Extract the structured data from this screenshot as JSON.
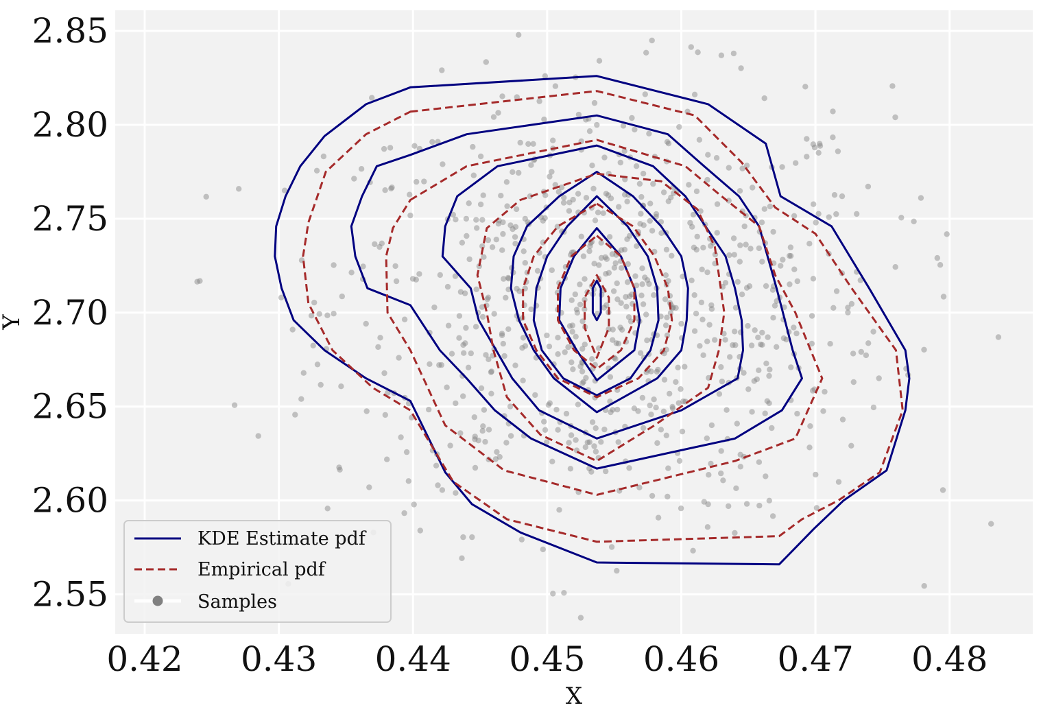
{
  "chart_data": {
    "type": "contour",
    "title": "",
    "xlabel": "X",
    "ylabel": "Y",
    "xlim": [
      0.4178,
      0.4862
    ],
    "ylim": [
      2.529,
      2.861
    ],
    "xticks": [
      0.42,
      0.43,
      0.44,
      0.45,
      0.46,
      0.47,
      0.48
    ],
    "xtick_labels": [
      "0.42",
      "0.43",
      "0.44",
      "0.45",
      "0.46",
      "0.47",
      "0.48"
    ],
    "yticks": [
      2.55,
      2.6,
      2.65,
      2.7,
      2.75,
      2.8,
      2.85
    ],
    "ytick_labels": [
      "2.55",
      "2.60",
      "2.65",
      "2.70",
      "2.75",
      "2.80",
      "2.85"
    ],
    "grid": true,
    "legend_position": "bottom-left",
    "colors": {
      "kde": "#000080",
      "empirical": "#a52a2a",
      "samples": "#808080",
      "plot_background": "#f2f2f2",
      "grid": "#ffffff"
    },
    "legend": [
      {
        "label": "KDE Estimate pdf",
        "style": "solid",
        "color": "#000080"
      },
      {
        "label": "Empirical pdf",
        "style": "dashed",
        "color": "#a52a2a"
      },
      {
        "label": "Samples",
        "style": "marker",
        "color": "#808080"
      }
    ],
    "series": [
      {
        "name": "KDE Estimate pdf",
        "style": "solid",
        "contours": [
          [
            [
              0.4398,
              2.82
            ],
            [
              0.4537,
              2.826
            ],
            [
              0.462,
              2.811
            ],
            [
              0.4663,
              2.79
            ],
            [
              0.4674,
              2.762
            ],
            [
              0.4712,
              2.746
            ],
            [
              0.474,
              2.713
            ],
            [
              0.4767,
              2.68
            ],
            [
              0.477,
              2.665
            ],
            [
              0.4767,
              2.648
            ],
            [
              0.4753,
              2.616
            ],
            [
              0.4721,
              2.6
            ],
            [
              0.4699,
              2.585
            ],
            [
              0.4673,
              2.566
            ],
            [
              0.4537,
              2.567
            ],
            [
              0.448,
              2.583
            ],
            [
              0.4444,
              2.598
            ],
            [
              0.4424,
              2.615
            ],
            [
              0.4398,
              2.653
            ],
            [
              0.4365,
              2.665
            ],
            [
              0.4334,
              2.68
            ],
            [
              0.4311,
              2.696
            ],
            [
              0.4302,
              2.713
            ],
            [
              0.4297,
              2.73
            ],
            [
              0.4298,
              2.746
            ],
            [
              0.4305,
              2.762
            ],
            [
              0.4316,
              2.778
            ],
            [
              0.4334,
              2.794
            ],
            [
              0.4365,
              2.811
            ]
          ],
          [
            [
              0.4398,
              2.784
            ],
            [
              0.444,
              2.795
            ],
            [
              0.4537,
              2.805
            ],
            [
              0.459,
              2.795
            ],
            [
              0.4617,
              2.778
            ],
            [
              0.4643,
              2.762
            ],
            [
              0.4658,
              2.746
            ],
            [
              0.4671,
              2.713
            ],
            [
              0.4683,
              2.68
            ],
            [
              0.469,
              2.665
            ],
            [
              0.4675,
              2.648
            ],
            [
              0.464,
              2.633
            ],
            [
              0.4537,
              2.617
            ],
            [
              0.4488,
              2.633
            ],
            [
              0.4461,
              2.648
            ],
            [
              0.444,
              2.665
            ],
            [
              0.442,
              2.68
            ],
            [
              0.4398,
              2.704
            ],
            [
              0.4366,
              2.713
            ],
            [
              0.4357,
              2.73
            ],
            [
              0.4354,
              2.746
            ],
            [
              0.4362,
              2.762
            ],
            [
              0.4373,
              2.778
            ]
          ],
          [
            [
              0.4537,
              2.789
            ],
            [
              0.4579,
              2.778
            ],
            [
              0.4603,
              2.762
            ],
            [
              0.4618,
              2.746
            ],
            [
              0.4633,
              2.73
            ],
            [
              0.464,
              2.713
            ],
            [
              0.4645,
              2.696
            ],
            [
              0.4646,
              2.68
            ],
            [
              0.4642,
              2.665
            ],
            [
              0.46,
              2.648
            ],
            [
              0.4537,
              2.633
            ],
            [
              0.4494,
              2.648
            ],
            [
              0.4474,
              2.665
            ],
            [
              0.4462,
              2.68
            ],
            [
              0.4449,
              2.696
            ],
            [
              0.4443,
              2.713
            ],
            [
              0.4422,
              2.73
            ],
            [
              0.4424,
              2.746
            ],
            [
              0.4433,
              2.762
            ],
            [
              0.4463,
              2.778
            ]
          ],
          [
            [
              0.4537,
              2.775
            ],
            [
              0.4564,
              2.762
            ],
            [
              0.4585,
              2.746
            ],
            [
              0.46,
              2.73
            ],
            [
              0.4605,
              2.713
            ],
            [
              0.4604,
              2.696
            ],
            [
              0.46,
              2.68
            ],
            [
              0.4582,
              2.665
            ],
            [
              0.4537,
              2.647
            ],
            [
              0.4505,
              2.665
            ],
            [
              0.449,
              2.68
            ],
            [
              0.4479,
              2.696
            ],
            [
              0.4473,
              2.713
            ],
            [
              0.4475,
              2.73
            ],
            [
              0.4485,
              2.746
            ],
            [
              0.4509,
              2.762
            ]
          ],
          [
            [
              0.4537,
              2.762
            ],
            [
              0.456,
              2.746
            ],
            [
              0.4575,
              2.73
            ],
            [
              0.4582,
              2.713
            ],
            [
              0.4583,
              2.696
            ],
            [
              0.4577,
              2.68
            ],
            [
              0.4562,
              2.665
            ],
            [
              0.4537,
              2.656
            ],
            [
              0.4512,
              2.665
            ],
            [
              0.4496,
              2.68
            ],
            [
              0.449,
              2.696
            ],
            [
              0.4492,
              2.713
            ],
            [
              0.45,
              2.73
            ],
            [
              0.4515,
              2.746
            ]
          ],
          [
            [
              0.4537,
              2.745
            ],
            [
              0.4555,
              2.73
            ],
            [
              0.4565,
              2.713
            ],
            [
              0.4569,
              2.696
            ],
            [
              0.4565,
              2.68
            ],
            [
              0.4537,
              2.664
            ],
            [
              0.4522,
              2.68
            ],
            [
              0.4509,
              2.696
            ],
            [
              0.451,
              2.713
            ],
            [
              0.452,
              2.73
            ]
          ],
          [
            [
              0.4537,
              2.717
            ],
            [
              0.454,
              2.713
            ],
            [
              0.454,
              2.7
            ],
            [
              0.4537,
              2.696
            ],
            [
              0.4534,
              2.7
            ],
            [
              0.4534,
              2.713
            ]
          ]
        ]
      },
      {
        "name": "Empirical pdf",
        "style": "dashed",
        "contours": [
          [
            [
              0.4398,
              2.807
            ],
            [
              0.4537,
              2.818
            ],
            [
              0.461,
              2.805
            ],
            [
              0.4645,
              2.78
            ],
            [
              0.467,
              2.756
            ],
            [
              0.47,
              2.742
            ],
            [
              0.4727,
              2.713
            ],
            [
              0.476,
              2.68
            ],
            [
              0.4765,
              2.648
            ],
            [
              0.4748,
              2.615
            ],
            [
              0.4717,
              2.6
            ],
            [
              0.469,
              2.59
            ],
            [
              0.4673,
              2.581
            ],
            [
              0.4537,
              2.578
            ],
            [
              0.447,
              2.59
            ],
            [
              0.443,
              2.61
            ],
            [
              0.4398,
              2.648
            ],
            [
              0.437,
              2.66
            ],
            [
              0.434,
              2.68
            ],
            [
              0.4322,
              2.705
            ],
            [
              0.4318,
              2.73
            ],
            [
              0.4322,
              2.748
            ],
            [
              0.4335,
              2.775
            ],
            [
              0.4365,
              2.795
            ]
          ],
          [
            [
              0.4398,
              2.76
            ],
            [
              0.444,
              2.778
            ],
            [
              0.4537,
              2.792
            ],
            [
              0.4603,
              2.778
            ],
            [
              0.463,
              2.762
            ],
            [
              0.4658,
              2.746
            ],
            [
              0.467,
              2.72
            ],
            [
              0.4685,
              2.7
            ],
            [
              0.4705,
              2.665
            ],
            [
              0.4685,
              2.633
            ],
            [
              0.464,
              2.621
            ],
            [
              0.4537,
              2.603
            ],
            [
              0.4468,
              2.616
            ],
            [
              0.4424,
              2.64
            ],
            [
              0.4398,
              2.68
            ],
            [
              0.4381,
              2.7
            ],
            [
              0.438,
              2.73
            ],
            [
              0.4385,
              2.745
            ]
          ],
          [
            [
              0.4537,
              2.774
            ],
            [
              0.4585,
              2.77
            ],
            [
              0.4612,
              2.755
            ],
            [
              0.4625,
              2.735
            ],
            [
              0.4628,
              2.72
            ],
            [
              0.4632,
              2.7
            ],
            [
              0.4628,
              2.68
            ],
            [
              0.462,
              2.66
            ],
            [
              0.458,
              2.64
            ],
            [
              0.4537,
              2.621
            ],
            [
              0.4495,
              2.635
            ],
            [
              0.447,
              2.655
            ],
            [
              0.446,
              2.68
            ],
            [
              0.4455,
              2.7
            ],
            [
              0.4448,
              2.72
            ],
            [
              0.4455,
              2.745
            ],
            [
              0.448,
              2.76
            ]
          ],
          [
            [
              0.4537,
              2.758
            ],
            [
              0.4564,
              2.746
            ],
            [
              0.458,
              2.73
            ],
            [
              0.459,
              2.713
            ],
            [
              0.4593,
              2.696
            ],
            [
              0.4587,
              2.68
            ],
            [
              0.4568,
              2.665
            ],
            [
              0.4537,
              2.655
            ],
            [
              0.4508,
              2.665
            ],
            [
              0.4492,
              2.68
            ],
            [
              0.4482,
              2.696
            ],
            [
              0.4482,
              2.713
            ],
            [
              0.449,
              2.73
            ],
            [
              0.4508,
              2.746
            ]
          ],
          [
            [
              0.4537,
              2.741
            ],
            [
              0.4555,
              2.73
            ],
            [
              0.4565,
              2.713
            ],
            [
              0.4565,
              2.696
            ],
            [
              0.4555,
              2.68
            ],
            [
              0.4537,
              2.67
            ],
            [
              0.452,
              2.68
            ],
            [
              0.4508,
              2.696
            ],
            [
              0.4508,
              2.713
            ],
            [
              0.4518,
              2.73
            ]
          ],
          [
            [
              0.4537,
              2.72
            ],
            [
              0.4546,
              2.708
            ],
            [
              0.4546,
              2.692
            ],
            [
              0.4537,
              2.676
            ],
            [
              0.4528,
              2.692
            ],
            [
              0.4528,
              2.708
            ]
          ]
        ]
      }
    ]
  }
}
